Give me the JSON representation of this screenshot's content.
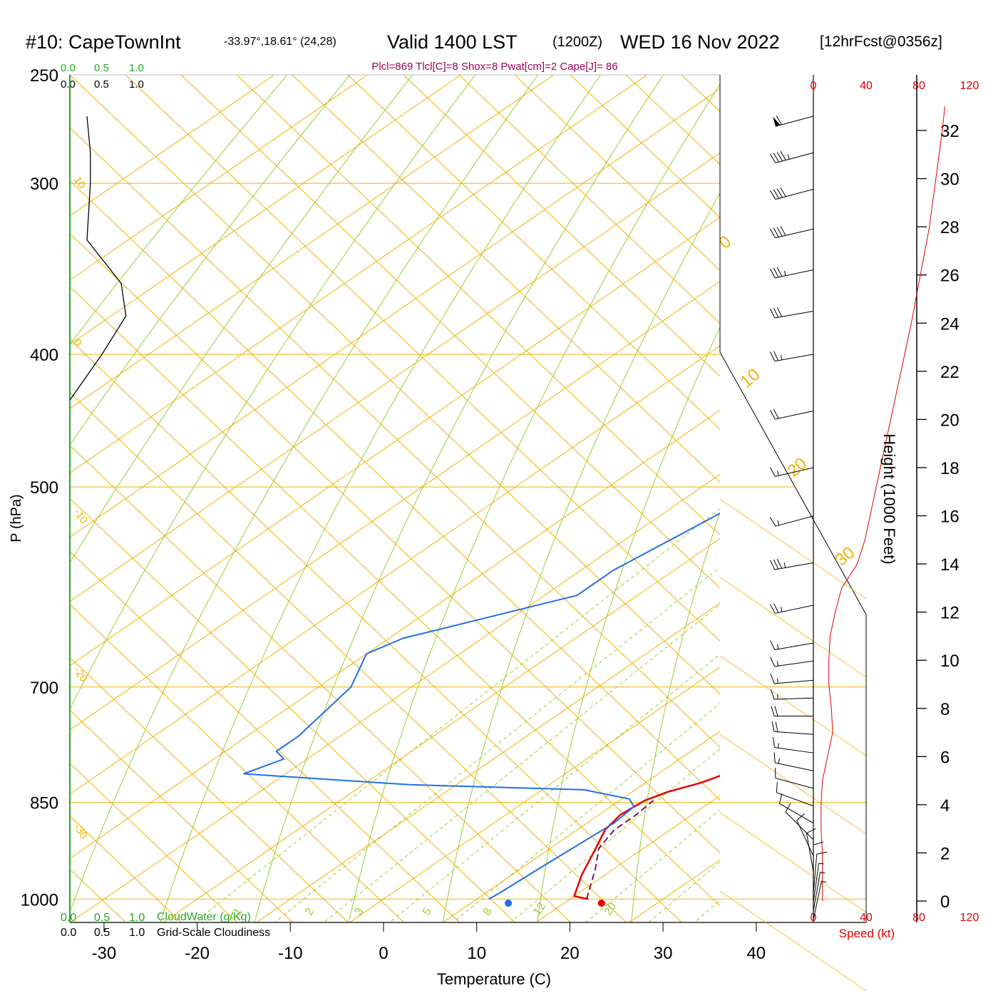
{
  "header": {
    "station": "#10: CapeTownInt",
    "coords": "-33.97°,18.61° (24,28)",
    "valid": "Valid 1400 LST",
    "utc": "(1200Z)",
    "date": "WED 16 Nov 2022",
    "forecast": "[12hrFcst@0356z]",
    "indices": "Plcl=869 Tlcl[C]=8 Shox=8 Pwat[cm]=2 Cape[J]= 86"
  },
  "colors": {
    "temperature": "#e80000",
    "dewpoint": "#1e6fe8",
    "parcel": "#7a0040",
    "isobar_isotherm": "#f2b200",
    "dry_adiabat": "#9acd32",
    "mixing_ratio": "#9acd32",
    "cloud_scale": "#22aa22",
    "speed": "#e00000",
    "indices": "#a0005a"
  },
  "cloud_scales": {
    "top_green": [
      "0.0",
      "0.5",
      "1.0"
    ],
    "top_black": [
      "0.0",
      "0.5",
      "1.0"
    ],
    "bottom_green": [
      "0.0",
      "0.5",
      "1.0"
    ],
    "bottom_green_label": "CloudWater (g/Kg)",
    "bottom_black": [
      "0.0",
      "0.5",
      "1.0"
    ],
    "bottom_black_label": "Grid-Scale Cloudiness"
  },
  "speed_axis": {
    "ticks": [
      "0",
      "40",
      "80",
      "120"
    ],
    "label": "Speed (kt)"
  },
  "height_axis": {
    "label": "Height (1000 Feet)",
    "ticks": [
      "0",
      "2",
      "4",
      "6",
      "8",
      "10",
      "12",
      "14",
      "16",
      "18",
      "20",
      "22",
      "24",
      "26",
      "28",
      "30",
      "32"
    ]
  },
  "chart_data": {
    "type": "line",
    "title": "#10: CapeTownInt  Valid 1400 LST (1200Z) WED 16 Nov 2022 [12hrFcst@0356z]",
    "xlabel": "Temperature (C)",
    "ylabel": "P (hPa)",
    "x_ticks": [
      -30,
      -20,
      -10,
      0,
      10,
      20,
      30,
      40
    ],
    "pressure_ticks": [
      250,
      300,
      400,
      500,
      700,
      850,
      1000
    ],
    "ylim": [
      1040,
      250
    ],
    "log_pressure_axis": true,
    "isotherm_labels": [
      "10",
      "0",
      "-10",
      "-20",
      "-30",
      "0",
      "10",
      "20",
      "30"
    ],
    "mixing_ratio_labels": [
      "1",
      "2",
      "3",
      "5",
      "8",
      "12",
      "20"
    ],
    "series": [
      {
        "name": "Temperature",
        "points": [
          [
            22.0,
            1000
          ],
          [
            20.0,
            995
          ],
          [
            17.5,
            960
          ],
          [
            15.0,
            920
          ],
          [
            13.0,
            890
          ],
          [
            12.3,
            868
          ],
          [
            12.7,
            847
          ],
          [
            13.8,
            835
          ],
          [
            16.0,
            822
          ],
          [
            17.0,
            812
          ],
          [
            17.2,
            780
          ],
          [
            16.3,
            745
          ],
          [
            14.9,
            700
          ],
          [
            14.3,
            663
          ],
          [
            14.0,
            620
          ],
          [
            13.3,
            570
          ],
          [
            10.5,
            515
          ],
          [
            6.0,
            445
          ],
          [
            2.0,
            400
          ],
          [
            -1.5,
            365
          ],
          [
            -4.5,
            340
          ],
          [
            -10.5,
            300
          ],
          [
            -16.0,
            268
          ]
        ]
      },
      {
        "name": "Dewpoint",
        "points": [
          [
            11.3,
            1000
          ],
          [
            11.5,
            990
          ],
          [
            12.0,
            945
          ],
          [
            12.9,
            880
          ],
          [
            12.5,
            856
          ],
          [
            10.8,
            845
          ],
          [
            4.5,
            832
          ],
          [
            -15.0,
            825
          ],
          [
            -34.5,
            810
          ],
          [
            -32.5,
            790
          ],
          [
            -34.5,
            780
          ],
          [
            -34.5,
            760
          ],
          [
            -36.5,
            700
          ],
          [
            -40.0,
            662
          ],
          [
            -38.5,
            645
          ],
          [
            -26.5,
            600
          ],
          [
            -26.5,
            575
          ],
          [
            -23.5,
            515
          ],
          [
            -12.5,
            430
          ],
          [
            -8.5,
            400
          ],
          [
            -9.7,
            370
          ],
          [
            -16.0,
            328
          ],
          [
            -21.5,
            300
          ],
          [
            -25.5,
            268
          ]
        ]
      },
      {
        "name": "Parcel",
        "points": [
          [
            21.8,
            1000
          ],
          [
            18.0,
            950
          ],
          [
            15.2,
            918
          ],
          [
            14.0,
            890
          ],
          [
            14.0,
            868
          ],
          [
            13.6,
            847
          ]
        ]
      }
    ],
    "surface_points": [
      {
        "name": "Surface temperature",
        "temp": 23.4,
        "pres": 1002
      },
      {
        "name": "Surface dewpoint",
        "temp": 13.4,
        "pres": 1002
      }
    ],
    "cloudiness_profile": [
      [
        0.25,
        268
      ],
      [
        0.3,
        285
      ],
      [
        0.3,
        300
      ],
      [
        0.25,
        330
      ],
      [
        0.75,
        355
      ],
      [
        0.82,
        375
      ],
      [
        0.47,
        400
      ],
      [
        0.0,
        432
      ]
    ],
    "wind_profile_ft": [
      {
        "h": 0.0,
        "spd": 7
      },
      {
        "h": 1.0,
        "spd": 7
      },
      {
        "h": 2.0,
        "spd": 7
      },
      {
        "h": 3.0,
        "spd": 6
      },
      {
        "h": 4.0,
        "spd": 6
      },
      {
        "h": 5.0,
        "spd": 7
      },
      {
        "h": 6.0,
        "spd": 11
      },
      {
        "h": 7.0,
        "spd": 15
      },
      {
        "h": 8.0,
        "spd": 14
      },
      {
        "h": 9.0,
        "spd": 12
      },
      {
        "h": 10.0,
        "spd": 12
      },
      {
        "h": 11.0,
        "spd": 13
      },
      {
        "h": 12.0,
        "spd": 17
      },
      {
        "h": 13.0,
        "spd": 22
      },
      {
        "h": 14.0,
        "spd": 34
      },
      {
        "h": 15.0,
        "spd": 40
      },
      {
        "h": 16.0,
        "spd": 44
      },
      {
        "h": 18.0,
        "spd": 52
      },
      {
        "h": 20.0,
        "spd": 60
      },
      {
        "h": 22.0,
        "spd": 68
      },
      {
        "h": 24.0,
        "spd": 76
      },
      {
        "h": 26.0,
        "spd": 83
      },
      {
        "h": 28.0,
        "spd": 90
      },
      {
        "h": 30.0,
        "spd": 95
      },
      {
        "h": 32.0,
        "spd": 100
      },
      {
        "h": 33.0,
        "spd": 102
      }
    ],
    "wind_barbs": [
      {
        "pres": 268,
        "spd": 60,
        "dir": 285
      },
      {
        "pres": 285,
        "spd": 45,
        "dir": 285
      },
      {
        "pres": 303,
        "spd": 40,
        "dir": 285
      },
      {
        "pres": 324,
        "spd": 40,
        "dir": 283
      },
      {
        "pres": 347,
        "spd": 35,
        "dir": 282
      },
      {
        "pres": 372,
        "spd": 30,
        "dir": 280
      },
      {
        "pres": 400,
        "spd": 25,
        "dir": 280
      },
      {
        "pres": 440,
        "spd": 20,
        "dir": 282
      },
      {
        "pres": 484,
        "spd": 15,
        "dir": 283
      },
      {
        "pres": 525,
        "spd": 15,
        "dir": 285
      },
      {
        "pres": 568,
        "spd": 35,
        "dir": 280
      },
      {
        "pres": 610,
        "spd": 25,
        "dir": 282
      },
      {
        "pres": 650,
        "spd": 15,
        "dir": 280
      },
      {
        "pres": 670,
        "spd": 15,
        "dir": 278
      },
      {
        "pres": 692,
        "spd": 15,
        "dir": 275
      },
      {
        "pres": 713,
        "spd": 15,
        "dir": 272
      },
      {
        "pres": 735,
        "spd": 20,
        "dir": 270
      },
      {
        "pres": 758,
        "spd": 20,
        "dir": 266
      },
      {
        "pres": 782,
        "spd": 15,
        "dir": 262
      },
      {
        "pres": 806,
        "spd": 15,
        "dir": 258
      },
      {
        "pres": 830,
        "spd": 10,
        "dir": 255
      },
      {
        "pres": 855,
        "spd": 10,
        "dir": 250
      },
      {
        "pres": 880,
        "spd": 10,
        "dir": 240
      },
      {
        "pres": 905,
        "spd": 10,
        "dir": 225
      },
      {
        "pres": 930,
        "spd": 10,
        "dir": 205
      },
      {
        "pres": 955,
        "spd": 10,
        "dir": 190
      },
      {
        "pres": 975,
        "spd": 10,
        "dir": 180
      },
      {
        "pres": 990,
        "spd": 10,
        "dir": 175
      },
      {
        "pres": 1005,
        "spd": 5,
        "dir": 172
      },
      {
        "pres": 1020,
        "spd": 5,
        "dir": 170
      },
      {
        "pres": 1035,
        "spd": 5,
        "dir": 168
      }
    ]
  }
}
